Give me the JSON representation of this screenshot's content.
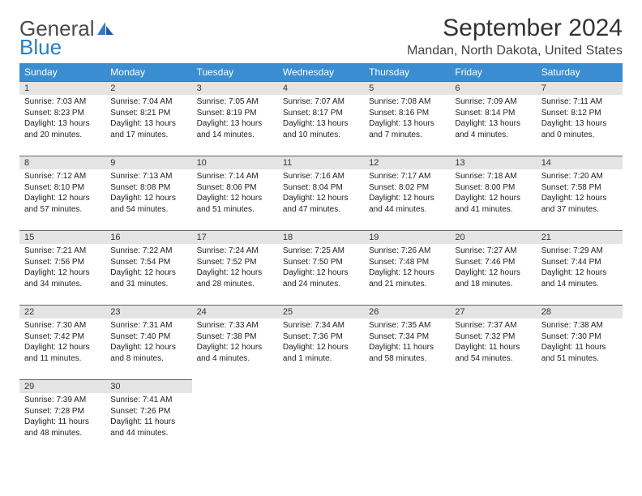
{
  "logo": {
    "word1": "General",
    "word2": "Blue"
  },
  "title": "September 2024",
  "location": "Mandan, North Dakota, United States",
  "colors": {
    "header_bg": "#3a8dd0",
    "header_text": "#ffffff",
    "daynum_bg": "#e4e4e4",
    "daynum_border": "#666666",
    "body_text": "#222222",
    "logo_gray": "#4a4a4a",
    "logo_blue": "#2d7dc0",
    "page_bg": "#ffffff"
  },
  "weekdays": [
    "Sunday",
    "Monday",
    "Tuesday",
    "Wednesday",
    "Thursday",
    "Friday",
    "Saturday"
  ],
  "days": [
    {
      "n": "1",
      "sunrise": "Sunrise: 7:03 AM",
      "sunset": "Sunset: 8:23 PM",
      "day1": "Daylight: 13 hours",
      "day2": "and 20 minutes."
    },
    {
      "n": "2",
      "sunrise": "Sunrise: 7:04 AM",
      "sunset": "Sunset: 8:21 PM",
      "day1": "Daylight: 13 hours",
      "day2": "and 17 minutes."
    },
    {
      "n": "3",
      "sunrise": "Sunrise: 7:05 AM",
      "sunset": "Sunset: 8:19 PM",
      "day1": "Daylight: 13 hours",
      "day2": "and 14 minutes."
    },
    {
      "n": "4",
      "sunrise": "Sunrise: 7:07 AM",
      "sunset": "Sunset: 8:17 PM",
      "day1": "Daylight: 13 hours",
      "day2": "and 10 minutes."
    },
    {
      "n": "5",
      "sunrise": "Sunrise: 7:08 AM",
      "sunset": "Sunset: 8:16 PM",
      "day1": "Daylight: 13 hours",
      "day2": "and 7 minutes."
    },
    {
      "n": "6",
      "sunrise": "Sunrise: 7:09 AM",
      "sunset": "Sunset: 8:14 PM",
      "day1": "Daylight: 13 hours",
      "day2": "and 4 minutes."
    },
    {
      "n": "7",
      "sunrise": "Sunrise: 7:11 AM",
      "sunset": "Sunset: 8:12 PM",
      "day1": "Daylight: 13 hours",
      "day2": "and 0 minutes."
    },
    {
      "n": "8",
      "sunrise": "Sunrise: 7:12 AM",
      "sunset": "Sunset: 8:10 PM",
      "day1": "Daylight: 12 hours",
      "day2": "and 57 minutes."
    },
    {
      "n": "9",
      "sunrise": "Sunrise: 7:13 AM",
      "sunset": "Sunset: 8:08 PM",
      "day1": "Daylight: 12 hours",
      "day2": "and 54 minutes."
    },
    {
      "n": "10",
      "sunrise": "Sunrise: 7:14 AM",
      "sunset": "Sunset: 8:06 PM",
      "day1": "Daylight: 12 hours",
      "day2": "and 51 minutes."
    },
    {
      "n": "11",
      "sunrise": "Sunrise: 7:16 AM",
      "sunset": "Sunset: 8:04 PM",
      "day1": "Daylight: 12 hours",
      "day2": "and 47 minutes."
    },
    {
      "n": "12",
      "sunrise": "Sunrise: 7:17 AM",
      "sunset": "Sunset: 8:02 PM",
      "day1": "Daylight: 12 hours",
      "day2": "and 44 minutes."
    },
    {
      "n": "13",
      "sunrise": "Sunrise: 7:18 AM",
      "sunset": "Sunset: 8:00 PM",
      "day1": "Daylight: 12 hours",
      "day2": "and 41 minutes."
    },
    {
      "n": "14",
      "sunrise": "Sunrise: 7:20 AM",
      "sunset": "Sunset: 7:58 PM",
      "day1": "Daylight: 12 hours",
      "day2": "and 37 minutes."
    },
    {
      "n": "15",
      "sunrise": "Sunrise: 7:21 AM",
      "sunset": "Sunset: 7:56 PM",
      "day1": "Daylight: 12 hours",
      "day2": "and 34 minutes."
    },
    {
      "n": "16",
      "sunrise": "Sunrise: 7:22 AM",
      "sunset": "Sunset: 7:54 PM",
      "day1": "Daylight: 12 hours",
      "day2": "and 31 minutes."
    },
    {
      "n": "17",
      "sunrise": "Sunrise: 7:24 AM",
      "sunset": "Sunset: 7:52 PM",
      "day1": "Daylight: 12 hours",
      "day2": "and 28 minutes."
    },
    {
      "n": "18",
      "sunrise": "Sunrise: 7:25 AM",
      "sunset": "Sunset: 7:50 PM",
      "day1": "Daylight: 12 hours",
      "day2": "and 24 minutes."
    },
    {
      "n": "19",
      "sunrise": "Sunrise: 7:26 AM",
      "sunset": "Sunset: 7:48 PM",
      "day1": "Daylight: 12 hours",
      "day2": "and 21 minutes."
    },
    {
      "n": "20",
      "sunrise": "Sunrise: 7:27 AM",
      "sunset": "Sunset: 7:46 PM",
      "day1": "Daylight: 12 hours",
      "day2": "and 18 minutes."
    },
    {
      "n": "21",
      "sunrise": "Sunrise: 7:29 AM",
      "sunset": "Sunset: 7:44 PM",
      "day1": "Daylight: 12 hours",
      "day2": "and 14 minutes."
    },
    {
      "n": "22",
      "sunrise": "Sunrise: 7:30 AM",
      "sunset": "Sunset: 7:42 PM",
      "day1": "Daylight: 12 hours",
      "day2": "and 11 minutes."
    },
    {
      "n": "23",
      "sunrise": "Sunrise: 7:31 AM",
      "sunset": "Sunset: 7:40 PM",
      "day1": "Daylight: 12 hours",
      "day2": "and 8 minutes."
    },
    {
      "n": "24",
      "sunrise": "Sunrise: 7:33 AM",
      "sunset": "Sunset: 7:38 PM",
      "day1": "Daylight: 12 hours",
      "day2": "and 4 minutes."
    },
    {
      "n": "25",
      "sunrise": "Sunrise: 7:34 AM",
      "sunset": "Sunset: 7:36 PM",
      "day1": "Daylight: 12 hours",
      "day2": "and 1 minute."
    },
    {
      "n": "26",
      "sunrise": "Sunrise: 7:35 AM",
      "sunset": "Sunset: 7:34 PM",
      "day1": "Daylight: 11 hours",
      "day2": "and 58 minutes."
    },
    {
      "n": "27",
      "sunrise": "Sunrise: 7:37 AM",
      "sunset": "Sunset: 7:32 PM",
      "day1": "Daylight: 11 hours",
      "day2": "and 54 minutes."
    },
    {
      "n": "28",
      "sunrise": "Sunrise: 7:38 AM",
      "sunset": "Sunset: 7:30 PM",
      "day1": "Daylight: 11 hours",
      "day2": "and 51 minutes."
    },
    {
      "n": "29",
      "sunrise": "Sunrise: 7:39 AM",
      "sunset": "Sunset: 7:28 PM",
      "day1": "Daylight: 11 hours",
      "day2": "and 48 minutes."
    },
    {
      "n": "30",
      "sunrise": "Sunrise: 7:41 AM",
      "sunset": "Sunset: 7:26 PM",
      "day1": "Daylight: 11 hours",
      "day2": "and 44 minutes."
    }
  ]
}
